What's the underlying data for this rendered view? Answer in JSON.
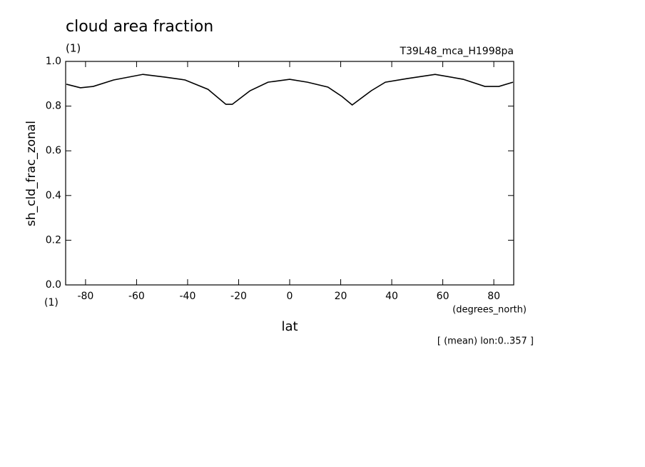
{
  "chart_data": {
    "type": "line",
    "title": "cloud area fraction",
    "units_label": "(1)",
    "run_label": "T39L48_mca_H1998pa",
    "y_label": "sh_cld_frac_zonal",
    "y_units": "(1)",
    "x_units": "(degrees_north)",
    "x_label": "lat",
    "annotation": "[ (mean) lon:0..357 ]",
    "x": [
      -87.5,
      -82,
      -77,
      -69,
      -57.5,
      -49,
      -41,
      -32,
      -25,
      -22.5,
      -15.5,
      -8.5,
      0,
      7,
      15,
      20.5,
      24.5,
      32,
      37.5,
      46,
      57,
      68,
      76.5,
      82,
      87.5
    ],
    "series": [
      {
        "color": "#000000",
        "values": [
          0.898,
          0.882,
          0.888,
          0.917,
          0.942,
          0.93,
          0.917,
          0.875,
          0.808,
          0.808,
          0.869,
          0.907,
          0.92,
          0.907,
          0.885,
          0.843,
          0.805,
          0.869,
          0.907,
          0.923,
          0.942,
          0.92,
          0.888,
          0.888,
          0.907
        ]
      }
    ],
    "xlim": [
      -87.8,
      87.8
    ],
    "ylim": [
      0,
      1
    ],
    "xticks": [
      -80,
      -60,
      -40,
      -20,
      0,
      20,
      40,
      60,
      80
    ],
    "yticks": [
      {
        "value": 0,
        "label": "0.0"
      },
      0.2,
      0.4,
      0.6,
      0.8,
      {
        "value": 1,
        "label": "1.0"
      }
    ]
  }
}
